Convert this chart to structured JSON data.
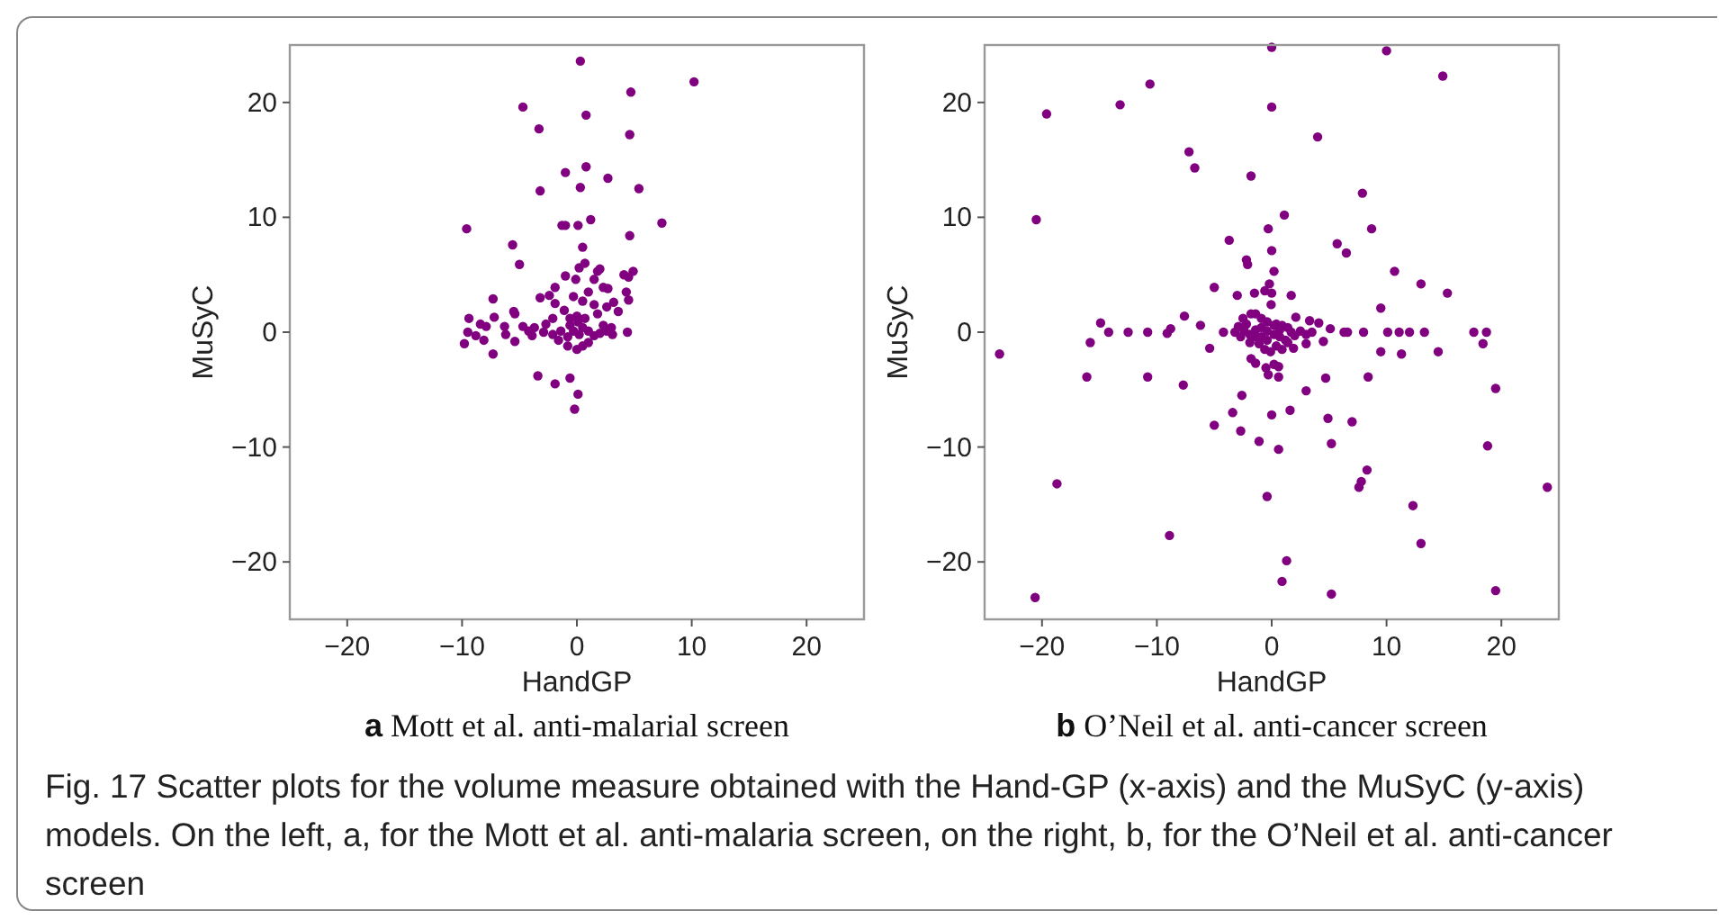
{
  "chart_data": [
    {
      "type": "scatter",
      "title": "a Mott et al. anti-malarial screen",
      "xlabel": "HandGP",
      "ylabel": "MuSyC",
      "xlim": [
        -25,
        25
      ],
      "ylim": [
        -25,
        25
      ],
      "xticks": [
        -20,
        -10,
        0,
        10,
        20
      ],
      "yticks": [
        -20,
        -10,
        0,
        10,
        20
      ],
      "marker": "circle",
      "series": [
        {
          "color": "#800080",
          "x": [
            0.3,
            10.2,
            4.7,
            -4.7,
            0.8,
            -3.3,
            4.6,
            0.8,
            -1.0,
            2.7,
            0.3,
            5.4,
            -3.2,
            1.2,
            -1.3,
            -1.0,
            0.1,
            7.4,
            -9.6,
            4.6,
            -5.6,
            0.5,
            -5.0,
            0.7,
            0.2,
            1.8,
            2.0,
            4.9,
            4.1,
            4.5,
            -1.0,
            -0.1,
            1.5,
            -1.9,
            2.3,
            2.7,
            1.0,
            4.3,
            -2.4,
            -3.2,
            -0.3,
            -7.3,
            4.5,
            3.2,
            -1.9,
            0.5,
            1.5,
            -1.1,
            2.6,
            3.6,
            -5.5,
            -5.4,
            -9.4,
            -7.2,
            -8.4,
            -7.9,
            -6.3,
            -4.7,
            -3.7,
            -2.7,
            -2.1,
            -0.6,
            0.0,
            0.7,
            1.8,
            2.3,
            3.0,
            -9.5,
            -8.8,
            -8.1,
            -9.8,
            -6.2,
            -5.4,
            -7.3,
            -4.2,
            -3.9,
            -2.9,
            -2.1,
            -1.4,
            -0.8,
            -0.3,
            0.2,
            0.5,
            1.0,
            1.5,
            2.0,
            2.6,
            3.1,
            4.4,
            -0.8,
            0.0,
            0.5,
            1.0,
            -1.6,
            -0.6,
            0.1,
            -3.4,
            -1.9,
            -0.6,
            0.1,
            -0.2
          ],
          "values": [
            23.6,
            21.8,
            20.9,
            19.6,
            18.9,
            17.7,
            17.2,
            14.4,
            13.9,
            13.4,
            12.6,
            12.5,
            12.3,
            9.8,
            9.3,
            9.3,
            9.3,
            9.5,
            9.0,
            8.4,
            7.6,
            7.4,
            5.9,
            6.0,
            5.6,
            5.3,
            5.5,
            5.3,
            5.0,
            4.8,
            4.9,
            4.6,
            4.6,
            3.9,
            3.9,
            3.8,
            3.5,
            3.5,
            3.2,
            3.0,
            3.1,
            2.9,
            2.8,
            2.6,
            2.5,
            2.7,
            2.4,
            1.9,
            2.2,
            1.8,
            1.8,
            1.6,
            1.2,
            1.3,
            0.7,
            0.5,
            0.5,
            0.5,
            0.4,
            0.7,
            1.2,
            1.2,
            1.4,
            1.2,
            1.6,
            0.6,
            0.4,
            0.0,
            -0.3,
            -0.7,
            -1.0,
            -0.2,
            -0.8,
            -1.9,
            0.1,
            -0.3,
            0.0,
            -0.2,
            0.1,
            -0.4,
            0.1,
            -0.2,
            0.4,
            0.1,
            -0.3,
            -0.1,
            0.1,
            -0.2,
            0.0,
            -1.2,
            -1.5,
            -1.2,
            -0.9,
            -0.7,
            0.6,
            0.9,
            -3.8,
            -4.5,
            -4.0,
            -5.4,
            -6.7
          ]
        }
      ],
      "annotations": [
        "Fig. 17  Scatter plots for the volume measure obtained with the Hand-GP (x-axis) and the MuSyC (y-axis) models. On the left, a, for the Mott et al. anti-malaria screen, on the right, b, for the O’Neil et al. anti-cancer screen"
      ]
    },
    {
      "type": "scatter",
      "title": "b O’Neil et al. anti-cancer screen",
      "xlabel": "HandGP",
      "ylabel": "MuSyC",
      "xlim": [
        -25,
        25
      ],
      "ylim": [
        -25,
        25
      ],
      "xticks": [
        -20,
        -10,
        0,
        10,
        20
      ],
      "yticks": [
        -20,
        -10,
        0,
        10,
        20
      ],
      "marker": "circle",
      "series": [
        {
          "color": "#800080",
          "x": [
            -23.7,
            -19.6,
            -20.5,
            -13.2,
            -10.6,
            0.0,
            10.0,
            14.9,
            0.0,
            4.0,
            -7.2,
            -6.7,
            -1.8,
            7.9,
            1.1,
            -0.3,
            8.7,
            -3.7,
            5.7,
            6.5,
            0.0,
            -2.2,
            -2.1,
            0.2,
            10.7,
            13.0,
            15.3,
            -5.0,
            -3.0,
            -1.5,
            -0.2,
            0.0,
            1.7,
            -0.6,
            -0.05,
            9.5,
            -14.9,
            -7.6,
            -6.2,
            -8.8,
            -9.1,
            -14.2,
            -12.5,
            -10.8,
            -4.2,
            -3.2,
            8.0,
            10.1,
            11.1,
            12.0,
            13.3,
            17.6,
            18.7,
            6.3,
            6.6,
            5.1,
            4.1,
            3.3,
            2.1,
            4.5,
            3.0,
            18.4,
            -15.8,
            -5.4,
            1.9,
            9.5,
            11.3,
            14.5,
            -1.8,
            -1.4,
            -0.5,
            -0.3,
            0.6,
            -16.1,
            -10.8,
            -7.7,
            3.0,
            4.7,
            8.4,
            19.5,
            -2.6,
            -2.5,
            -1.8,
            -1.4,
            -0.9,
            -0.4,
            0.4,
            0.9,
            1.4,
            1.7,
            2.5,
            3.0,
            3.5,
            -2.4,
            -1.9,
            -1.4,
            -0.9,
            -0.4,
            0.2,
            0.7,
            1.2,
            -1.9,
            -1.1,
            -0.6,
            -0.1,
            0.4,
            0.9,
            1.4,
            -1.4,
            -0.9,
            -0.4,
            0.2,
            0.7,
            2.0,
            -2.9,
            -2.7,
            -2.2,
            0.2,
            0.6,
            -3.4,
            -5.0,
            -2.7,
            0.0,
            1.6,
            4.9,
            7.0,
            -1.1,
            0.6,
            5.2,
            18.8,
            8.3,
            7.8,
            7.6,
            24.0,
            -18.7,
            -0.4,
            12.3,
            -8.9,
            13.0,
            1.3,
            0.9,
            -20.6,
            5.2,
            19.5
          ],
          "values": [
            -1.9,
            19.0,
            9.8,
            19.8,
            21.6,
            24.8,
            24.5,
            22.3,
            19.6,
            17.0,
            15.7,
            14.3,
            13.6,
            12.1,
            10.2,
            9.0,
            9.0,
            8.0,
            7.7,
            6.9,
            7.1,
            6.3,
            5.9,
            5.3,
            5.3,
            4.2,
            3.4,
            3.9,
            3.2,
            3.4,
            4.2,
            3.4,
            3.2,
            3.6,
            2.4,
            2.1,
            0.8,
            1.4,
            0.6,
            0.3,
            -0.1,
            0.0,
            0.0,
            0.0,
            0.0,
            0.0,
            0.0,
            0.0,
            0.0,
            0.0,
            0.0,
            0.0,
            0.0,
            0.0,
            0.0,
            0.3,
            0.8,
            1.0,
            1.3,
            -0.8,
            -1.0,
            -1.0,
            -0.9,
            -1.4,
            -1.4,
            -1.7,
            -1.9,
            -1.7,
            -2.3,
            -2.7,
            -3.1,
            -3.7,
            -3.0,
            -3.9,
            -3.9,
            -4.6,
            -5.1,
            -4.0,
            -3.9,
            -4.9,
            -5.5,
            1.2,
            1.6,
            1.6,
            1.2,
            0.9,
            0.7,
            0.6,
            0.4,
            0.0,
            0.1,
            -0.2,
            0.0,
            0.1,
            -0.2,
            -0.4,
            0.4,
            0.1,
            -0.2,
            -0.4,
            -0.7,
            -0.9,
            -1.0,
            -1.5,
            -1.7,
            -1.2,
            -1.5,
            -0.9,
            0.2,
            -0.4,
            -0.7,
            0.6,
            0.2,
            -0.3,
            0.5,
            -0.4,
            0.7,
            -2.8,
            -3.9,
            -7.0,
            -8.1,
            -8.6,
            -7.2,
            -6.8,
            -7.5,
            -7.8,
            -9.5,
            -10.2,
            -9.7,
            -9.9,
            -12.0,
            -13.0,
            -13.5,
            -13.5,
            -13.2,
            -14.3,
            -15.1,
            -17.7,
            -18.4,
            -19.9,
            -21.7,
            -23.1,
            -22.8,
            -22.5
          ]
        }
      ]
    }
  ]
}
